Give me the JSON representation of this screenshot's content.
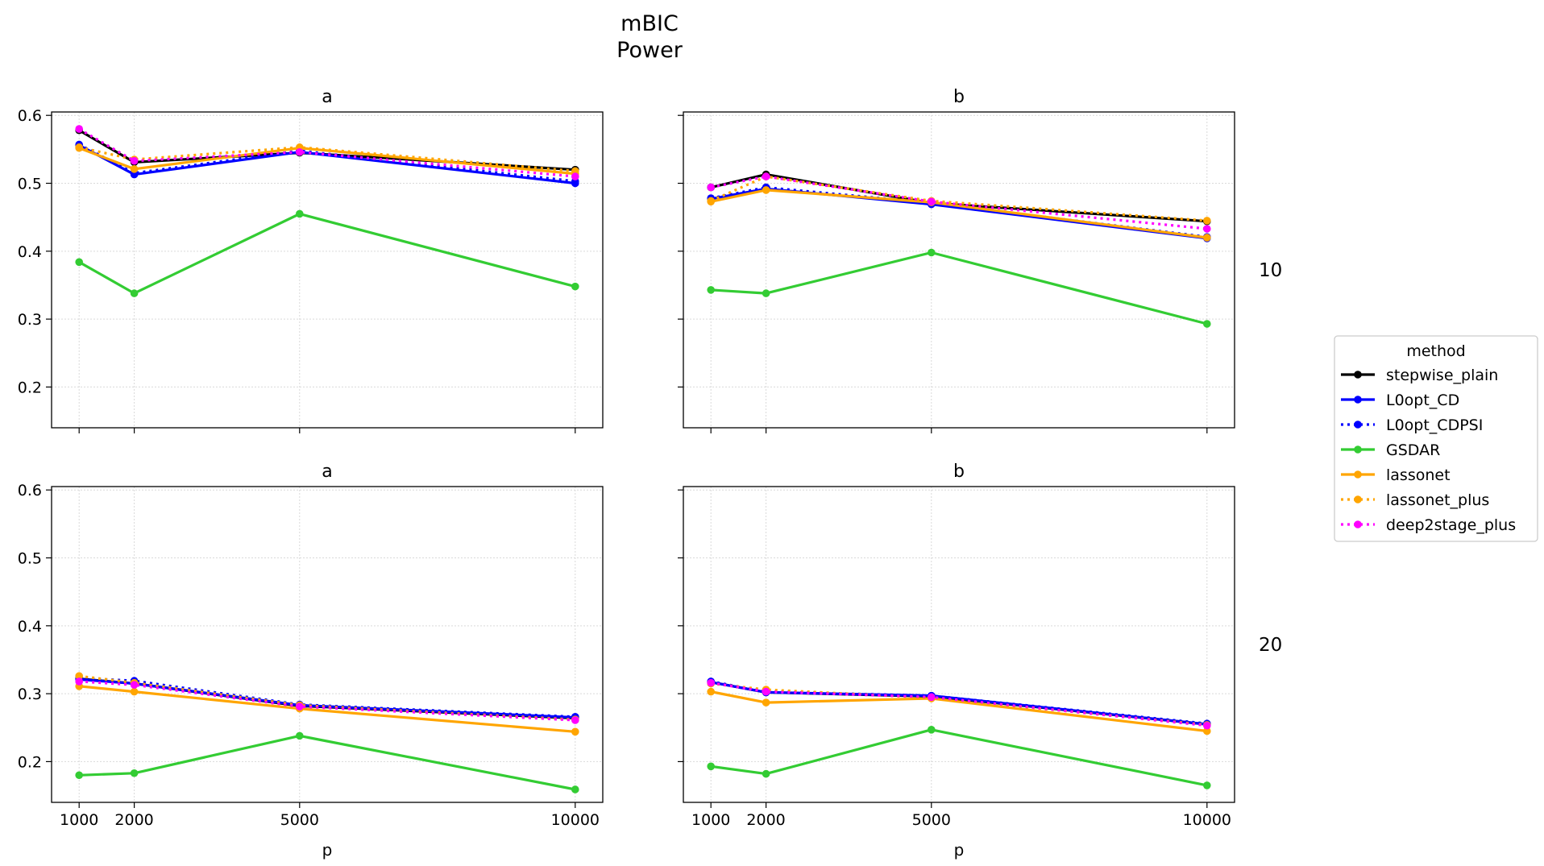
{
  "chart_data": {
    "type": "line",
    "title": "mBIC",
    "subtitle": "Power",
    "xlabel": "p",
    "x": [
      1000,
      2000,
      5000,
      10000
    ],
    "x_ticks": [
      "1000",
      "2000",
      "5000",
      "10000"
    ],
    "xlim": [
      500,
      10500
    ],
    "ylim": [
      0.14,
      0.605
    ],
    "y_ticks": [
      "0.2",
      "0.3",
      "0.4",
      "0.5",
      "0.6"
    ],
    "y_tick_values": [
      0.2,
      0.3,
      0.4,
      0.5,
      0.6
    ],
    "grid": true,
    "legend": {
      "title": "method",
      "placement": "right",
      "entries": [
        {
          "name": "stepwise_plain",
          "color": "#000000",
          "dash": "solid"
        },
        {
          "name": "L0opt_CD",
          "color": "#0000ff",
          "dash": "solid"
        },
        {
          "name": "L0opt_CDPSI",
          "color": "#0000ff",
          "dash": "dotted"
        },
        {
          "name": "GSDAR",
          "color": "#33cc33",
          "dash": "solid"
        },
        {
          "name": "lassonet",
          "color": "#ffa500",
          "dash": "solid"
        },
        {
          "name": "lassonet_plus",
          "color": "#ffa500",
          "dash": "dotted"
        },
        {
          "name": "deep2stage_plus",
          "color": "#ff00ff",
          "dash": "dotted"
        }
      ]
    },
    "row_labels": [
      "10",
      "20"
    ],
    "panels": [
      {
        "title": "a",
        "row": 0,
        "col": 0,
        "series": [
          {
            "name": "stepwise_plain",
            "values": [
              0.578,
              0.531,
              0.545,
              0.52
            ]
          },
          {
            "name": "L0opt_CD",
            "values": [
              0.556,
              0.513,
              0.546,
              0.5
            ]
          },
          {
            "name": "L0opt_CDPSI",
            "values": [
              0.557,
              0.515,
              0.548,
              0.503
            ]
          },
          {
            "name": "GSDAR",
            "values": [
              0.384,
              0.338,
              0.455,
              0.348
            ]
          },
          {
            "name": "lassonet",
            "values": [
              0.552,
              0.521,
              0.552,
              0.514
            ]
          },
          {
            "name": "lassonet_plus",
            "values": [
              0.553,
              0.535,
              0.553,
              0.518
            ]
          },
          {
            "name": "deep2stage_plus",
            "values": [
              0.58,
              0.533,
              0.546,
              0.51
            ]
          }
        ]
      },
      {
        "title": "b",
        "row": 0,
        "col": 1,
        "series": [
          {
            "name": "stepwise_plain",
            "values": [
              0.494,
              0.513,
              0.471,
              0.444
            ]
          },
          {
            "name": "L0opt_CD",
            "values": [
              0.477,
              0.492,
              0.469,
              0.419
            ]
          },
          {
            "name": "L0opt_CDPSI",
            "values": [
              0.478,
              0.494,
              0.471,
              0.421
            ]
          },
          {
            "name": "GSDAR",
            "values": [
              0.343,
              0.338,
              0.398,
              0.293
            ]
          },
          {
            "name": "lassonet",
            "values": [
              0.473,
              0.49,
              0.472,
              0.42
            ]
          },
          {
            "name": "lassonet_plus",
            "values": [
              0.474,
              0.51,
              0.474,
              0.445
            ]
          },
          {
            "name": "deep2stage_plus",
            "values": [
              0.494,
              0.51,
              0.473,
              0.433
            ]
          }
        ]
      },
      {
        "title": "a",
        "row": 1,
        "col": 0,
        "series": [
          {
            "name": "stepwise_plain",
            "values": [
              0.322,
              0.315,
              0.282,
              0.264
            ]
          },
          {
            "name": "L0opt_CD",
            "values": [
              0.321,
              0.315,
              0.283,
              0.265
            ]
          },
          {
            "name": "L0opt_CDPSI",
            "values": [
              0.323,
              0.319,
              0.284,
              0.266
            ]
          },
          {
            "name": "GSDAR",
            "values": [
              0.18,
              0.183,
              0.238,
              0.159
            ]
          },
          {
            "name": "lassonet",
            "values": [
              0.311,
              0.303,
              0.278,
              0.244
            ]
          },
          {
            "name": "lassonet_plus",
            "values": [
              0.326,
              0.316,
              0.283,
              0.262
            ]
          },
          {
            "name": "deep2stage_plus",
            "values": [
              0.318,
              0.313,
              0.281,
              0.261
            ]
          }
        ]
      },
      {
        "title": "b",
        "row": 1,
        "col": 1,
        "series": [
          {
            "name": "stepwise_plain",
            "values": [
              0.317,
              0.302,
              0.296,
              0.255
            ]
          },
          {
            "name": "L0opt_CD",
            "values": [
              0.317,
              0.302,
              0.297,
              0.255
            ]
          },
          {
            "name": "L0opt_CDPSI",
            "values": [
              0.318,
              0.303,
              0.297,
              0.256
            ]
          },
          {
            "name": "GSDAR",
            "values": [
              0.193,
              0.182,
              0.247,
              0.165
            ]
          },
          {
            "name": "lassonet",
            "values": [
              0.303,
              0.287,
              0.293,
              0.245
            ]
          },
          {
            "name": "lassonet_plus",
            "values": [
              0.315,
              0.306,
              0.294,
              0.254
            ]
          },
          {
            "name": "deep2stage_plus",
            "values": [
              0.316,
              0.303,
              0.295,
              0.253
            ]
          }
        ]
      }
    ]
  }
}
